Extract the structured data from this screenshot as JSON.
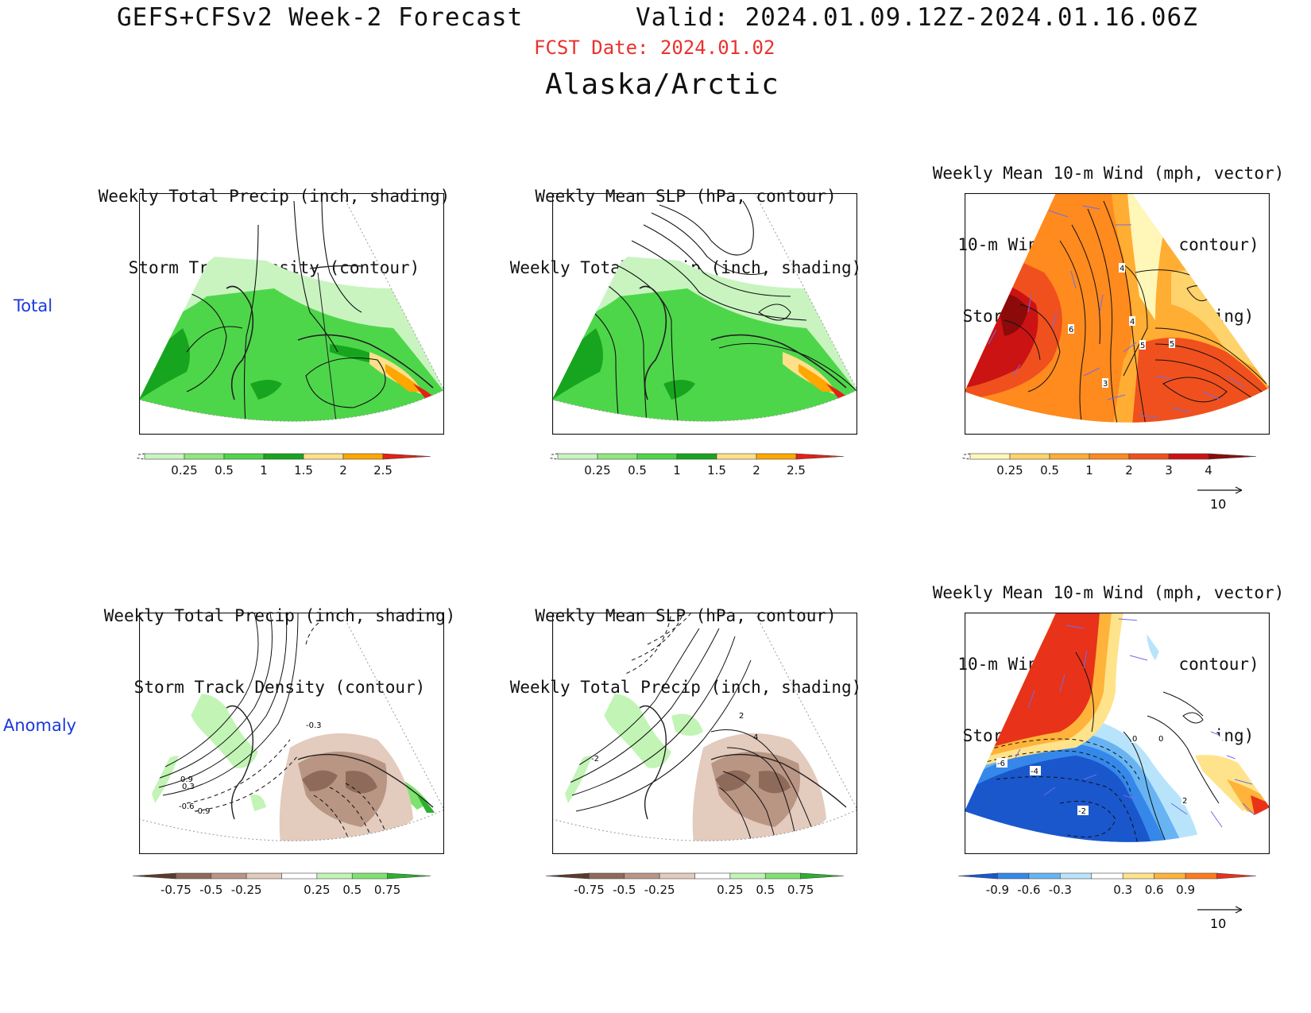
{
  "header": {
    "main_title": "GEFS+CFSv2 Week-2 Forecast",
    "valid": "Valid: 2024.01.09.12Z-2024.01.16.06Z",
    "fcst_date": "FCST Date: 2024.01.02",
    "region": "Alaska/Arctic"
  },
  "rows": {
    "total": "Total",
    "anomaly": "Anomaly"
  },
  "panels": {
    "t1": {
      "line1": "Weekly Total Precip (inch, shading)",
      "line2": "Storm Track Density (contour)",
      "line3": ""
    },
    "t2": {
      "line1": "Weekly Mean SLP (hPa, contour)",
      "line2": "Weekly Total Precip (inch, shading)",
      "line3": ""
    },
    "t3": {
      "line1": "Weekly Mean 10-m Wind (mph, vector)",
      "line2": "10-m Wind Speed (mph, contour)",
      "line3": "Storm Track Density (shading)"
    },
    "a1": {
      "line1": "Weekly Total Precip (inch, shading)",
      "line2": "Storm Track Density (contour)",
      "line3": ""
    },
    "a2": {
      "line1": "Weekly Mean SLP (hPa, contour)",
      "line2": "Weekly Total Precip (inch, shading)",
      "line3": ""
    },
    "a3": {
      "line1": "Weekly Mean 10-m Wind (mph, vector)",
      "line2": "10-m Wind Speed (mph, contour)",
      "line3": "Storm Track Density (shading)"
    }
  },
  "contour_labels": {
    "t3": [
      "4",
      "6",
      "4",
      "5",
      "5",
      "3"
    ],
    "a1": [
      "-0.3",
      "0.9",
      "0.3",
      "-0.6",
      "-0.9"
    ],
    "a2": [
      "2",
      "4",
      "-2"
    ],
    "a3": [
      "-6",
      "-4",
      "-2",
      "0",
      "0",
      "2"
    ]
  },
  "colorbars": {
    "precip_total": {
      "ticks": [
        "0.25",
        "0.5",
        "1",
        "1.5",
        "2",
        "2.5"
      ],
      "colors": [
        "#c9f4c0",
        "#8ee87e",
        "#4ed64a",
        "#17a51f",
        "#ffe08a",
        "#ffa600",
        "#e32114"
      ]
    },
    "storm_total": {
      "ticks": [
        "0.25",
        "0.5",
        "1",
        "2",
        "3",
        "4"
      ],
      "colors": [
        "#fff7b8",
        "#ffd36b",
        "#ffad33",
        "#ff8a1e",
        "#f0501d",
        "#cc1313",
        "#8c0a0a"
      ]
    },
    "precip_anom": {
      "ticks": [
        "-0.75",
        "-0.5",
        "-0.25",
        "0.25",
        "0.5",
        "0.75"
      ],
      "colors": [
        "#5a3a2c",
        "#8e6a5a",
        "#b99584",
        "#e3cbbd",
        "#ffffff",
        "#c2f4b6",
        "#7fe26f",
        "#2bb12d"
      ]
    },
    "storm_anom": {
      "ticks": [
        "-0.9",
        "-0.6",
        "-0.3",
        "0.3",
        "0.6",
        "0.9"
      ],
      "colors": [
        "#1a57cc",
        "#3588ea",
        "#68b4f3",
        "#b8e4fb",
        "#ffffff",
        "#ffe38a",
        "#ffb33a",
        "#ff7a1a",
        "#e8321a"
      ]
    }
  },
  "vector_reference": "10"
}
